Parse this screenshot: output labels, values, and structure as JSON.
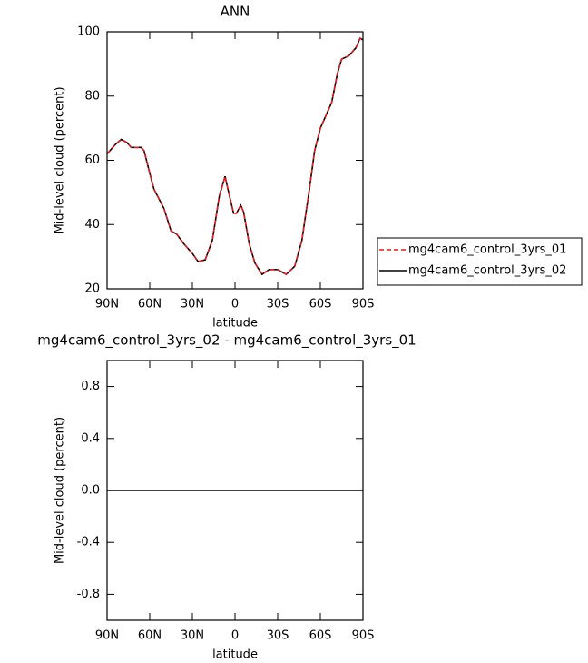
{
  "chart_data": [
    {
      "type": "line",
      "title": "ANN",
      "xlabel": "latitude",
      "ylabel": "Mid-level cloud (percent)",
      "x": [
        90,
        84,
        80,
        76,
        73,
        66,
        64,
        60,
        57,
        50,
        45,
        41,
        36,
        30,
        26,
        21,
        16,
        11,
        7,
        5,
        1,
        -1,
        -4,
        -6,
        -10,
        -14,
        -19,
        -24,
        -30,
        -36,
        -42,
        -47,
        -52,
        -56,
        -60,
        -65,
        -68,
        -72,
        -75,
        -80,
        -85,
        -88,
        -90
      ],
      "series": [
        {
          "name": "mg4cam6_control_3yrs_01",
          "color": "#e41a1c",
          "style": "dashed",
          "values": [
            62,
            65,
            66.5,
            65.5,
            64,
            64,
            63,
            56,
            51,
            45,
            38,
            37,
            34,
            31,
            28.5,
            29,
            35,
            49,
            55,
            51,
            43.5,
            43.5,
            46,
            44,
            34,
            28,
            24.5,
            26,
            26,
            24.5,
            27,
            35,
            50,
            63,
            70,
            75,
            78,
            87,
            91.5,
            92.5,
            95,
            98,
            97.5
          ]
        },
        {
          "name": "mg4cam6_control_3yrs_02",
          "color": "#000000",
          "style": "solid",
          "values": [
            62,
            65,
            66.5,
            65.5,
            64,
            64,
            63,
            56,
            51,
            45,
            38,
            37,
            34,
            31,
            28.5,
            29,
            35,
            49,
            55,
            51,
            43.5,
            43.5,
            46,
            44,
            34,
            28,
            24.5,
            26,
            26,
            24.5,
            27,
            35,
            50,
            63,
            70,
            75,
            78,
            87,
            91.5,
            92.5,
            95,
            98,
            97.5
          ]
        }
      ],
      "xlim": [
        90,
        -90
      ],
      "xticks": [
        {
          "value": 90,
          "label": "90N"
        },
        {
          "value": 60,
          "label": "60N"
        },
        {
          "value": 30,
          "label": "30N"
        },
        0,
        {
          "value": -30,
          "label": "30S"
        },
        {
          "value": -60,
          "label": "60S"
        },
        {
          "value": -90,
          "label": "90S"
        }
      ],
      "ylim": [
        20,
        100
      ],
      "yticks": [
        20,
        40,
        60,
        80,
        100
      ],
      "legend": "right"
    },
    {
      "type": "line",
      "title": "mg4cam6_control_3yrs_02 - mg4cam6_control_3yrs_01",
      "xlabel": "latitude",
      "ylabel": "Mid-level cloud (percent)",
      "x": [
        90,
        -90
      ],
      "series": [
        {
          "color": "#000000",
          "style": "solid",
          "values": [
            0,
            0
          ]
        }
      ],
      "xlim": [
        90,
        -90
      ],
      "xticks": [
        {
          "value": 90,
          "label": "90N"
        },
        {
          "value": 60,
          "label": "60N"
        },
        {
          "value": 30,
          "label": "30N"
        },
        0,
        {
          "value": -30,
          "label": "30S"
        },
        {
          "value": -60,
          "label": "60S"
        },
        {
          "value": -90,
          "label": "90S"
        }
      ],
      "ylim": [
        -1,
        1
      ],
      "yticks": [
        -0.8,
        -0.4,
        {
          "value": 0,
          "label": "0.0"
        },
        0.4,
        0.8
      ]
    }
  ]
}
